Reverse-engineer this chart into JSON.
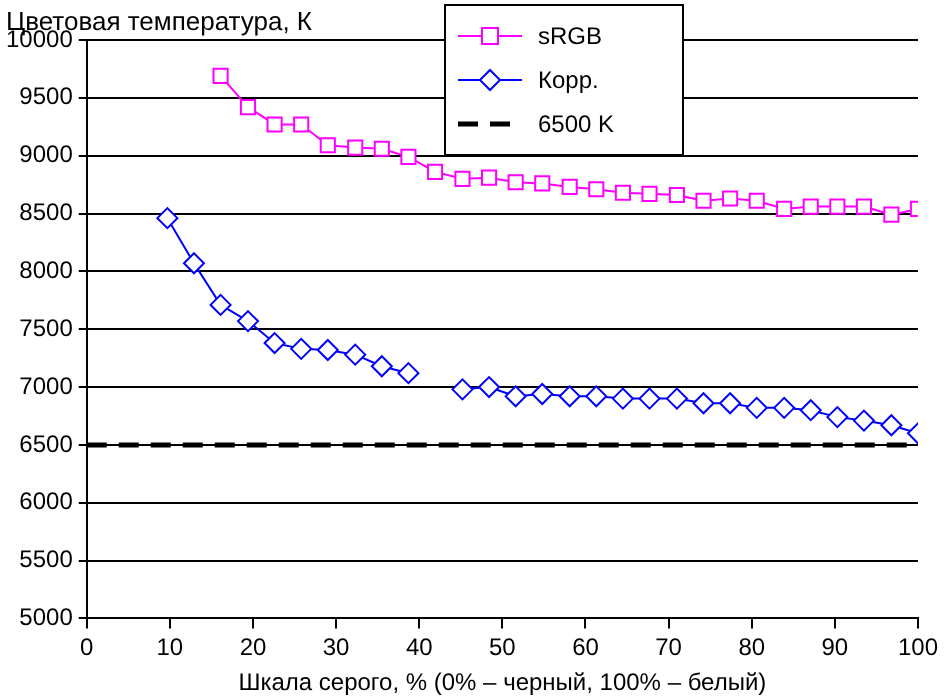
{
  "chart_data": {
    "type": "line",
    "ylabel": "Цветовая температура, К",
    "xlabel": "Шкала серого, % (0% – черный, 100% – белый)",
    "xlim": [
      0,
      100
    ],
    "xticks": [
      0,
      10,
      20,
      30,
      40,
      50,
      60,
      70,
      80,
      90,
      100
    ],
    "ylim": [
      5000,
      10000
    ],
    "yticks": [
      5000,
      5500,
      6000,
      6500,
      7000,
      7500,
      8000,
      8500,
      9000,
      9500,
      10000
    ],
    "grid": "y",
    "legend": "top right",
    "line_style": "solid",
    "series": [
      {
        "name": "sRGB",
        "color": "#ff00ff",
        "marker": "square",
        "x": [
          16.1,
          19.4,
          22.6,
          25.8,
          29.0,
          32.3,
          35.5,
          38.7,
          41.9,
          45.2,
          48.4,
          51.6,
          54.8,
          58.1,
          61.3,
          64.5,
          67.7,
          71.0,
          74.2,
          77.4,
          80.6,
          83.9,
          87.1,
          90.3,
          93.5,
          96.8,
          100
        ],
        "values": [
          9690,
          9420,
          9270,
          9270,
          9090,
          9070,
          9060,
          8990,
          8860,
          8800,
          8810,
          8770,
          8760,
          8730,
          8710,
          8680,
          8670,
          8660,
          8610,
          8630,
          8610,
          8540,
          8560,
          8560,
          8560,
          8490,
          8540
        ]
      },
      {
        "name": "Корр.",
        "color": "#0000ff",
        "marker": "diamond",
        "x": [
          9.7,
          12.9,
          16.1,
          19.4,
          22.6,
          25.8,
          29.0,
          32.3,
          35.5,
          38.7,
          41.9,
          45.2,
          48.4,
          51.6,
          54.8,
          58.1,
          61.3,
          64.5,
          67.7,
          71.0,
          74.2,
          77.4,
          80.6,
          83.9,
          87.1,
          90.3,
          93.5,
          96.8,
          100
        ],
        "values": [
          8460,
          8070,
          7710,
          7570,
          7380,
          7330,
          7320,
          7280,
          7180,
          7120,
          null,
          6980,
          7000,
          6920,
          6940,
          6920,
          6920,
          6900,
          6900,
          6900,
          6860,
          6860,
          6820,
          6820,
          6800,
          6740,
          6710,
          6670,
          6600
        ]
      }
    ],
    "ref_lines": [
      {
        "axis": "y",
        "value": 6500,
        "label": "6500 K",
        "color": "#000000",
        "line_style": "dashed"
      }
    ]
  }
}
